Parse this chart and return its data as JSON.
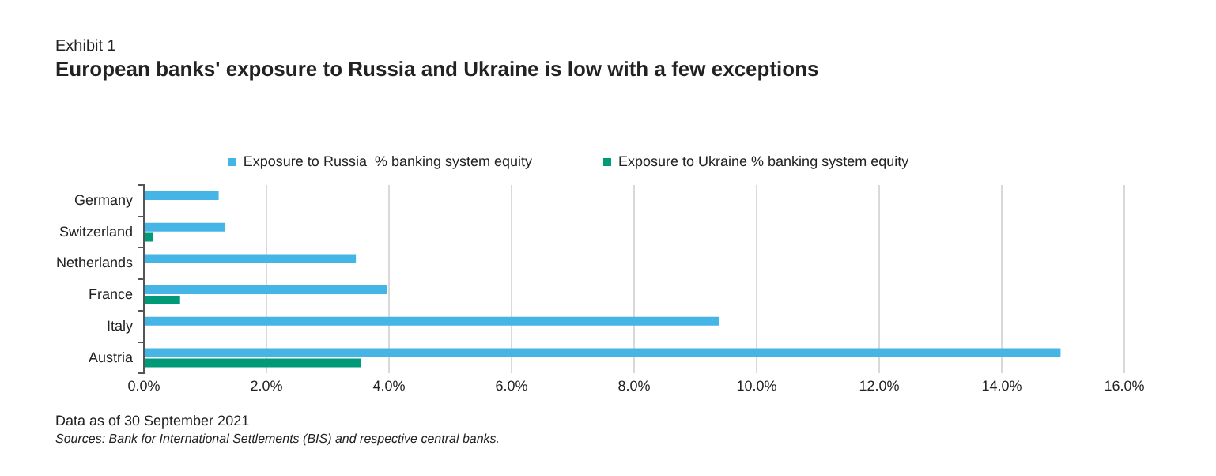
{
  "chart_data": {
    "type": "bar",
    "orientation": "horizontal",
    "title": "European banks' exposure to Russia and Ukraine is low with a few exceptions",
    "subtitle": "Exhibit 1",
    "categories": [
      "Germany",
      "Switzerland",
      "Netherlands",
      "France",
      "Italy",
      "Austria"
    ],
    "series": [
      {
        "name": "Exposure to Russia  % banking system equity",
        "color": "#45b5e5",
        "values": [
          1.22,
          1.33,
          3.46,
          3.97,
          9.39,
          14.96
        ]
      },
      {
        "name": "Exposure to Ukraine % banking system equity",
        "color": "#009a78",
        "values": [
          null,
          0.15,
          null,
          0.59,
          null,
          3.54
        ]
      }
    ],
    "xlim": [
      0,
      16
    ],
    "xticks": [
      {
        "value": 0,
        "label": "0.0%"
      },
      {
        "value": 2,
        "label": "2.0%"
      },
      {
        "value": 4,
        "label": "4.0%"
      },
      {
        "value": 6,
        "label": "6.0%"
      },
      {
        "value": 8,
        "label": "8.0%"
      },
      {
        "value": 10,
        "label": "10.0%"
      },
      {
        "value": 12,
        "label": "12.0%"
      },
      {
        "value": 14,
        "label": "14.0%"
      },
      {
        "value": 16,
        "label": "16.0%"
      }
    ],
    "grid": "x",
    "legend": "top",
    "annotations": [
      "Data as of 30 September 2021",
      "Sources: Bank for International Settlements (BIS) and respective central banks."
    ]
  }
}
